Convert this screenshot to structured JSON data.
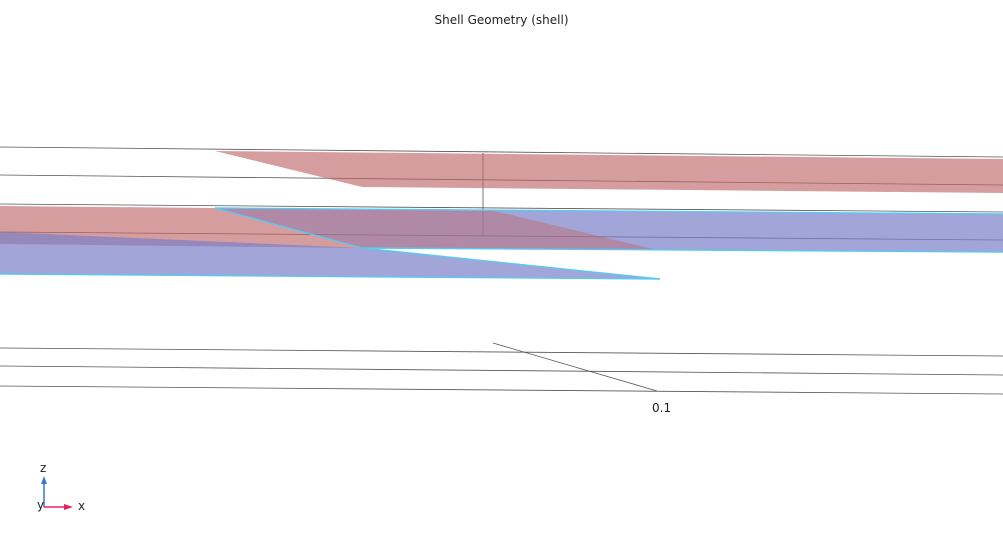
{
  "title": "Shell Geometry (shell)",
  "scale_label": "0.1",
  "axes": {
    "z_label": "z",
    "y_label": "y",
    "x_label": "x"
  },
  "colors": {
    "red_shell": "#c0696b",
    "blue_shell": "#7b7fc8",
    "edge_highlight": "#5bc8f0",
    "grid_line": "#555555",
    "x_axis": "#e3245b",
    "z_axis": "#3a76d8"
  }
}
